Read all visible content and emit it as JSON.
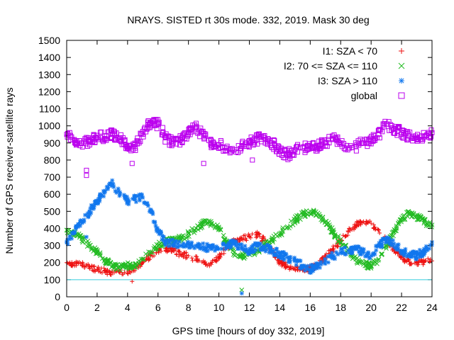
{
  "chart_data": {
    "type": "scatter",
    "title": "NRAYS. SISTED rt 30s mode. 332, 2019. Mask 30 deg",
    "xlabel": "GPS time [hours of doy 332, 2019]",
    "ylabel": "Number of GPS receiver-satellite rays",
    "xlim": [
      0,
      24
    ],
    "ylim": [
      0,
      1500
    ],
    "xticks": [
      0,
      2,
      4,
      6,
      8,
      10,
      12,
      14,
      16,
      18,
      20,
      22,
      24
    ],
    "yticks": [
      0,
      100,
      200,
      300,
      400,
      500,
      600,
      700,
      800,
      900,
      1000,
      1100,
      1200,
      1300,
      1400,
      1500
    ],
    "grid": false,
    "legend_position": "top-right",
    "reference_line": {
      "y": 100,
      "color": "#33ccdd"
    },
    "series": [
      {
        "name": "I1: SZA < 70",
        "marker": "plus",
        "color": "#ee1111",
        "x": [
          0,
          0.5,
          1,
          1.5,
          2,
          2.5,
          3,
          3.5,
          4,
          4.5,
          5,
          5.5,
          6,
          6.5,
          7,
          7.5,
          8,
          8.5,
          9,
          9.5,
          10,
          10.5,
          11,
          11.5,
          12,
          12.5,
          13,
          13.5,
          14,
          14.5,
          15,
          15.5,
          16,
          16.5,
          17,
          17.5,
          18,
          18.5,
          19,
          19.5,
          20,
          20.5,
          21,
          21.5,
          22,
          22.5,
          23,
          23.5,
          24
        ],
        "y": [
          200,
          195,
          185,
          175,
          160,
          150,
          140,
          145,
          150,
          170,
          200,
          240,
          270,
          280,
          270,
          250,
          240,
          220,
          200,
          190,
          230,
          290,
          330,
          340,
          350,
          365,
          330,
          270,
          200,
          180,
          160,
          155,
          165,
          190,
          230,
          280,
          330,
          380,
          420,
          440,
          430,
          390,
          330,
          280,
          230,
          205,
          200,
          205,
          210
        ]
      },
      {
        "name": "I2: 70 <= SZA <= 110",
        "marker": "cross",
        "color": "#22bb22",
        "x": [
          0,
          0.5,
          1,
          1.5,
          2,
          2.5,
          3,
          3.5,
          4,
          4.5,
          5,
          5.5,
          6,
          6.5,
          7,
          7.5,
          8,
          8.5,
          9,
          9.5,
          10,
          10.5,
          11,
          11.5,
          12,
          12.5,
          13,
          13.5,
          14,
          14.5,
          15,
          15.5,
          16,
          16.5,
          17,
          17.5,
          18,
          18.5,
          19,
          19.5,
          20,
          20.5,
          21,
          21.5,
          22,
          22.5,
          23,
          23.5,
          24
        ],
        "y": [
          390,
          370,
          340,
          300,
          260,
          220,
          180,
          175,
          180,
          190,
          220,
          260,
          300,
          320,
          330,
          340,
          370,
          400,
          430,
          430,
          400,
          320,
          260,
          240,
          250,
          270,
          300,
          330,
          370,
          410,
          450,
          480,
          500,
          490,
          440,
          380,
          320,
          270,
          220,
          190,
          180,
          220,
          300,
          380,
          450,
          490,
          470,
          440,
          420
        ]
      },
      {
        "name": "I3: SZA > 110",
        "marker": "star",
        "color": "#1177ee",
        "x": [
          0,
          0.5,
          1,
          1.5,
          2,
          2.5,
          3,
          3.5,
          4,
          4.5,
          5,
          5.5,
          6,
          6.5,
          7,
          7.5,
          8,
          8.5,
          9,
          9.5,
          10,
          10.5,
          11,
          11.5,
          12,
          12.5,
          13,
          13.5,
          14,
          14.5,
          15,
          15.5,
          16,
          16.5,
          17,
          17.5,
          18,
          18.5,
          19,
          19.5,
          20,
          20.5,
          21,
          21.5,
          22,
          22.5,
          23,
          23.5,
          24
        ],
        "y": [
          320,
          380,
          440,
          500,
          560,
          610,
          660,
          600,
          560,
          570,
          580,
          510,
          380,
          320,
          310,
          300,
          310,
          300,
          290,
          285,
          280,
          300,
          310,
          290,
          260,
          300,
          290,
          270,
          250,
          230,
          210,
          180,
          160,
          180,
          210,
          240,
          260,
          270,
          280,
          260,
          240,
          300,
          330,
          310,
          270,
          250,
          240,
          270,
          320
        ]
      },
      {
        "name": "global",
        "marker": "square",
        "color": "#bb00ee",
        "x": [
          0,
          0.5,
          1,
          1.5,
          2,
          2.5,
          3,
          3.5,
          4,
          4.5,
          5,
          5.5,
          6,
          6.5,
          7,
          7.5,
          8,
          8.5,
          9,
          9.5,
          10,
          10.5,
          11,
          11.5,
          12,
          12.5,
          13,
          13.5,
          14,
          14.5,
          15,
          15.5,
          16,
          16.5,
          17,
          17.5,
          18,
          18.5,
          19,
          19.5,
          20,
          20.5,
          21,
          21.5,
          22,
          22.5,
          23,
          23.5,
          24
        ],
        "y": [
          950,
          920,
          900,
          910,
          930,
          940,
          950,
          930,
          870,
          880,
          950,
          1020,
          1010,
          930,
          900,
          920,
          960,
          990,
          940,
          900,
          890,
          870,
          860,
          880,
          900,
          920,
          930,
          900,
          850,
          830,
          860,
          870,
          880,
          880,
          900,
          920,
          900,
          870,
          880,
          900,
          910,
          950,
          1010,
          980,
          960,
          940,
          930,
          935,
          960
        ]
      }
    ],
    "outliers": [
      {
        "series": "I1: SZA < 70",
        "x": [
          1.3,
          4.3
        ],
        "y": [
          180,
          90
        ]
      },
      {
        "series": "I2: 70 <= SZA <= 110",
        "x": [
          11.5
        ],
        "y": [
          40
        ]
      },
      {
        "series": "I3: SZA > 110",
        "x": [
          1.3,
          11.5,
          11.5
        ],
        "y": [
          350,
          20,
          280
        ]
      },
      {
        "series": "global",
        "x": [
          1.3,
          1.3,
          4.3,
          9.0,
          12.2
        ],
        "y": [
          740,
          710,
          780,
          780,
          800
        ]
      }
    ]
  }
}
